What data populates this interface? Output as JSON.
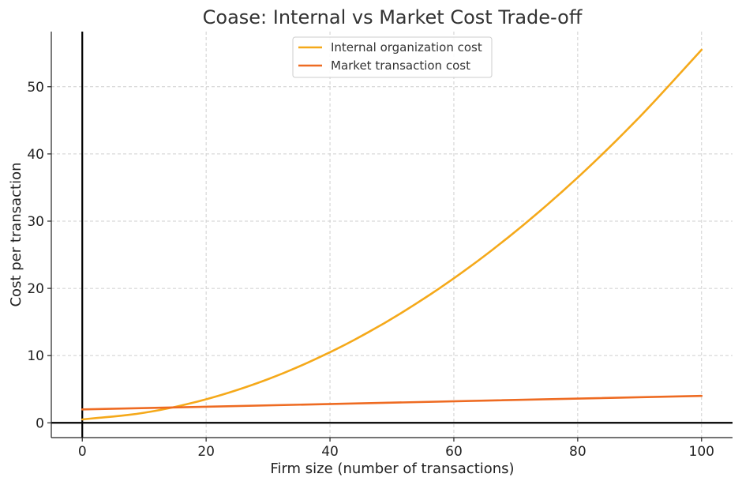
{
  "chart_data": {
    "type": "line",
    "title": "Coase: Internal vs Market Cost Trade-off",
    "xlabel": "Firm size (number of transactions)",
    "ylabel": "Cost per transaction",
    "xlim": [
      -5,
      105
    ],
    "ylim": [
      -2.2,
      58.2
    ],
    "xticks": [
      0,
      20,
      40,
      60,
      80,
      100
    ],
    "yticks": [
      0,
      10,
      20,
      30,
      40,
      50
    ],
    "grid": true,
    "legend_position": "top-center",
    "reference_lines": {
      "x": 0,
      "y": 0
    },
    "series": [
      {
        "name": "Internal organization cost",
        "color": "#F5A91A",
        "x": [
          0,
          10,
          20,
          30,
          40,
          50,
          60,
          70,
          80,
          90,
          100
        ],
        "y": [
          0.5,
          1.5,
          3.5,
          6.5,
          10.5,
          15.5,
          21.5,
          28.5,
          36.5,
          45.5,
          55.5
        ]
      },
      {
        "name": "Market transaction cost",
        "color": "#EE6B22",
        "x": [
          0,
          100
        ],
        "y": [
          2.0,
          4.0
        ]
      }
    ]
  }
}
